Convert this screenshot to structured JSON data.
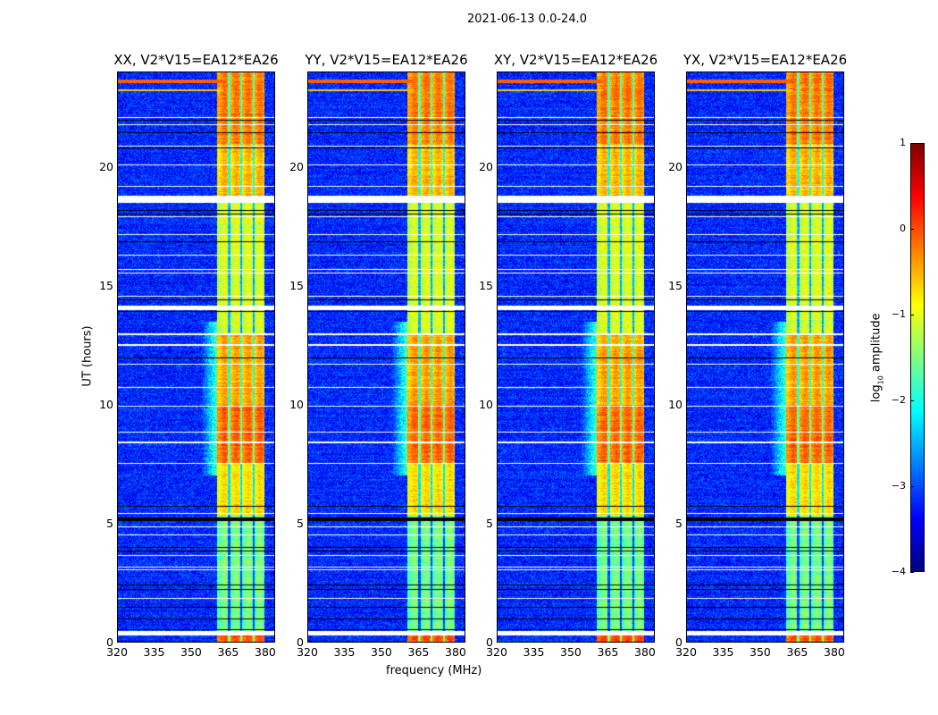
{
  "chart_data": {
    "type": "heatmap",
    "title": "2021-06-13 0.0-24.0",
    "xlabel": "frequency (MHz)",
    "ylabel": "UT (hours)",
    "xlim": [
      320,
      384
    ],
    "ylim": [
      0,
      24
    ],
    "xticks": [
      "320",
      "335",
      "350",
      "365",
      "380"
    ],
    "xtick_values": [
      320,
      335,
      350,
      365,
      380
    ],
    "yticks": [
      "0",
      "5",
      "10",
      "15",
      "20"
    ],
    "ytick_values": [
      0,
      5,
      10,
      15,
      20
    ],
    "panels": [
      {
        "title": "XX, V2*V15=EA12*EA26"
      },
      {
        "title": "YY, V2*V15=EA12*EA26"
      },
      {
        "title": "XY, V2*V15=EA12*EA26"
      },
      {
        "title": "YX, V2*V15=EA12*EA26"
      }
    ],
    "colorbar": {
      "label": "log10 amplitude",
      "label_main": "log",
      "label_sub": "10",
      "label_rest": " amplitude",
      "range": [
        -4,
        1
      ],
      "ticks": [
        "1",
        "0",
        "−1",
        "−2",
        "−3",
        "−4"
      ],
      "tick_values": [
        1,
        0,
        -1,
        -2,
        -3,
        -4
      ],
      "colormap": "jet"
    },
    "band_mhz": [
      360.5,
      380
    ],
    "band_gaps_mhz": [
      365.5,
      370.5,
      375.5
    ],
    "background_level": -3.2,
    "band_level_by_time": [
      {
        "from": 0,
        "to": 0.4,
        "level": -0.1
      },
      {
        "from": 0.4,
        "to": 5.3,
        "level": -1.6
      },
      {
        "from": 5.3,
        "to": 7.5,
        "level": -0.8
      },
      {
        "from": 7.5,
        "to": 10,
        "level": -0.2
      },
      {
        "from": 10,
        "to": 13,
        "level": -0.5
      },
      {
        "from": 13,
        "to": 18.5,
        "level": -1.1
      },
      {
        "from": 18.5,
        "to": 21,
        "level": -0.6
      },
      {
        "from": 21,
        "to": 24,
        "level": -0.3
      }
    ],
    "flagged_white_hours": [
      [
        0.25,
        0.45
      ],
      [
        1.8,
        1.85
      ],
      [
        3.0,
        3.04
      ],
      [
        3.13,
        3.17
      ],
      [
        3.6,
        3.64
      ],
      [
        4.5,
        4.54
      ],
      [
        4.83,
        4.87
      ],
      [
        5.38,
        5.42
      ],
      [
        7.48,
        7.53
      ],
      [
        8.38,
        8.43
      ],
      [
        8.8,
        8.84
      ],
      [
        9.9,
        9.94
      ],
      [
        10.7,
        10.74
      ],
      [
        11.68,
        11.72
      ],
      [
        12.48,
        12.53
      ],
      [
        12.93,
        12.98
      ],
      [
        13.98,
        14.15
      ],
      [
        14.53,
        14.57
      ],
      [
        15.53,
        15.57
      ],
      [
        15.68,
        15.72
      ],
      [
        16.28,
        16.32
      ],
      [
        17.13,
        17.17
      ],
      [
        17.88,
        17.92
      ],
      [
        18.5,
        18.8
      ],
      [
        19.18,
        19.22
      ],
      [
        20.08,
        20.12
      ],
      [
        20.88,
        20.92
      ],
      [
        21.78,
        21.82
      ],
      [
        22.08,
        22.12
      ]
    ],
    "flagged_black_hours": [
      [
        0.5,
        0.54
      ],
      [
        0.95,
        0.98
      ],
      [
        1.45,
        1.48
      ],
      [
        2.2,
        2.23
      ],
      [
        2.38,
        2.41
      ],
      [
        3.8,
        3.83
      ],
      [
        3.95,
        3.98
      ],
      [
        5.1,
        5.25
      ],
      [
        5.7,
        5.73
      ],
      [
        11.95,
        11.98
      ],
      [
        12.5,
        12.52
      ],
      [
        13.9,
        13.95
      ],
      [
        14.4,
        14.44
      ],
      [
        16.15,
        16.18
      ],
      [
        16.85,
        16.88
      ],
      [
        18.0,
        18.03
      ],
      [
        18.15,
        18.18
      ],
      [
        18.9,
        18.93
      ],
      [
        20.8,
        20.83
      ],
      [
        21.45,
        21.48
      ],
      [
        21.98,
        22.01
      ]
    ]
  }
}
